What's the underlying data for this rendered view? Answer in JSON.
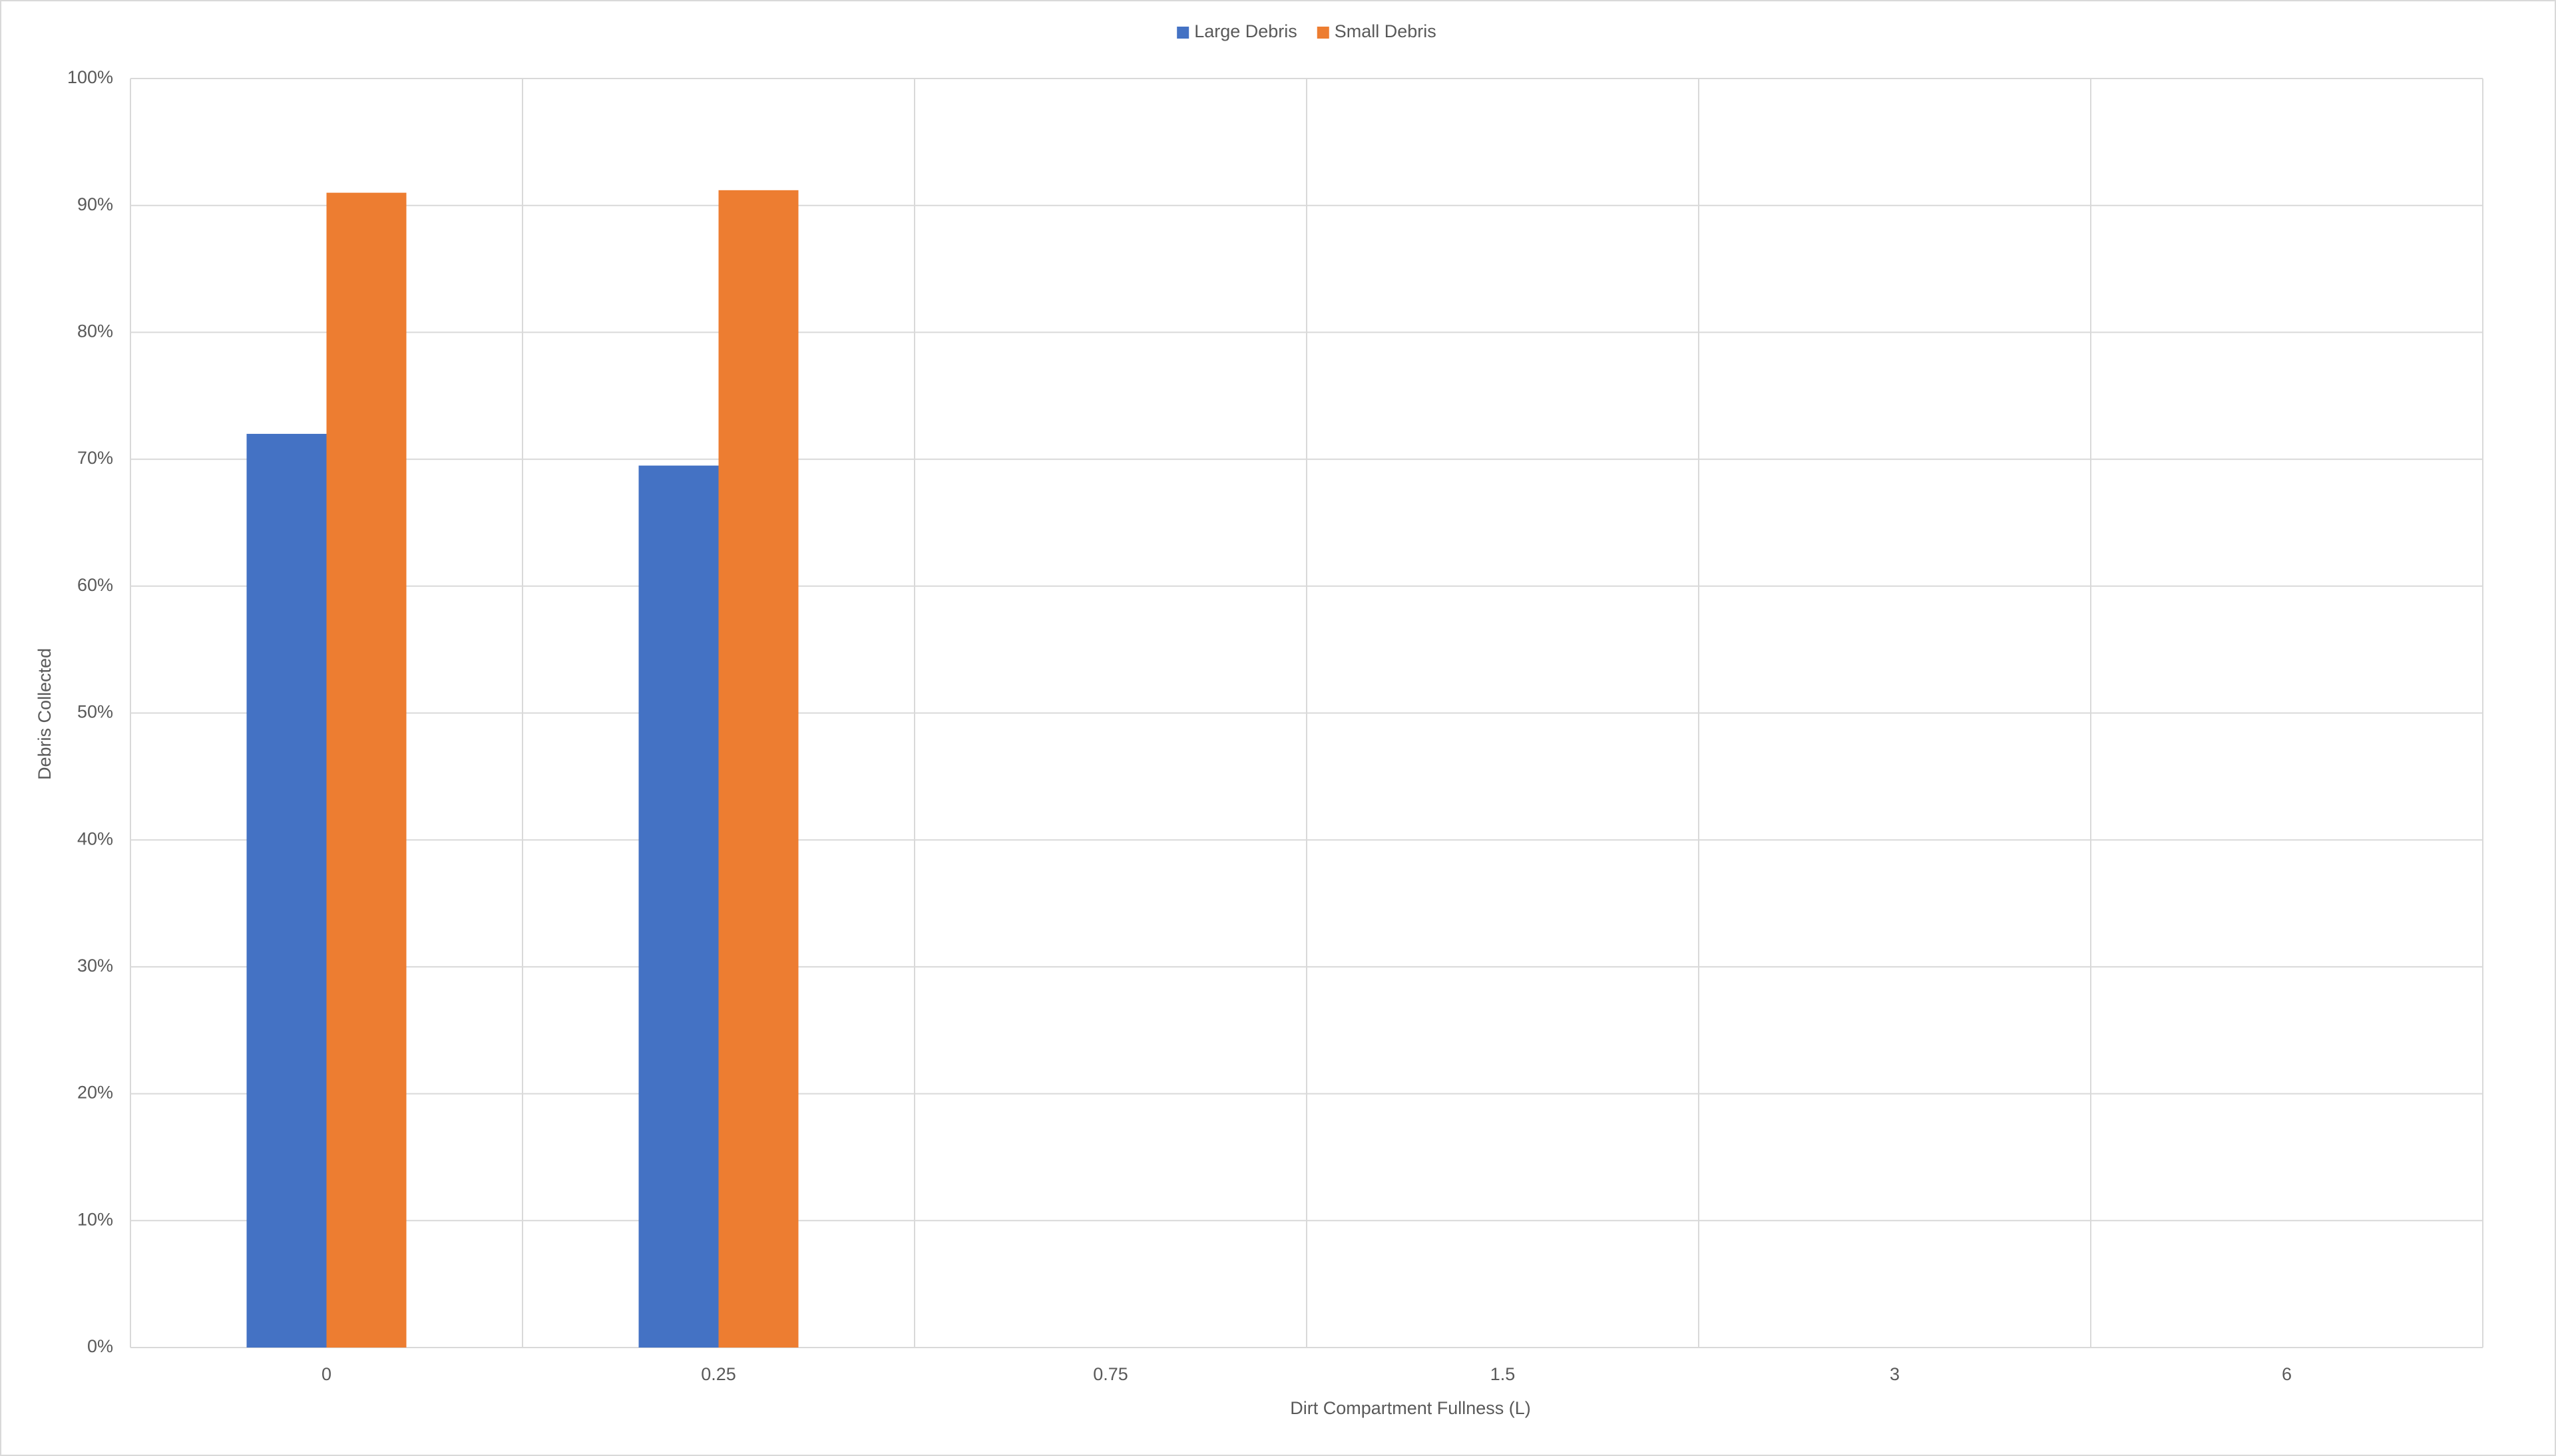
{
  "chart_data": {
    "type": "bar",
    "x_label": "Dirt Compartment  Fullness (L)",
    "y_label": "Debris Collected",
    "categories": [
      "0",
      "0.25",
      "0.75",
      "1.5",
      "3",
      "6"
    ],
    "series": [
      {
        "name": "Large Debris",
        "color": "#4472c4",
        "values": [
          72,
          69.5,
          null,
          null,
          null,
          null
        ]
      },
      {
        "name": "Small Debris",
        "color": "#ed7d31",
        "values": [
          91,
          91.2,
          null,
          null,
          null,
          null
        ]
      }
    ],
    "ylim": [
      0,
      100
    ],
    "yticks": [
      {
        "value": 0,
        "label": "0%"
      },
      {
        "value": 10,
        "label": "10%"
      },
      {
        "value": 20,
        "label": "20%"
      },
      {
        "value": 30,
        "label": "30%"
      },
      {
        "value": 40,
        "label": "40%"
      },
      {
        "value": 50,
        "label": "50%"
      },
      {
        "value": 60,
        "label": "60%"
      },
      {
        "value": 70,
        "label": "70%"
      },
      {
        "value": 80,
        "label": "80%"
      },
      {
        "value": 90,
        "label": "90%"
      },
      {
        "value": 100,
        "label": "100%"
      }
    ],
    "grid": true,
    "legend": "top"
  }
}
